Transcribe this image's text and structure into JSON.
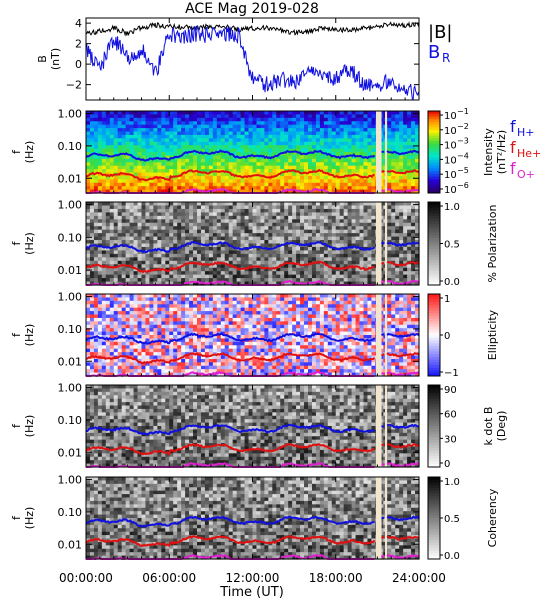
{
  "chart_data": {
    "type": "multi-panel spectrogram",
    "title": "ACE Mag 2019-028",
    "x_label": "Time (UT)",
    "x_ticks": [
      "00:00:00",
      "06:00:00",
      "12:00:00",
      "18:00:00",
      "24:00:00"
    ],
    "x_range_hours": [
      0,
      24
    ],
    "data_gap_hours": [
      [
        20.9,
        21.3
      ],
      [
        21.55,
        21.7
      ]
    ],
    "field_panel": {
      "y_label_line1": "B",
      "y_label_line2": "(nT)",
      "y_ticks": [
        "4",
        "2",
        "0",
        "−2"
      ],
      "y_range": [
        -3.5,
        4.5
      ],
      "series": [
        {
          "name": "|B|",
          "color": "#000000",
          "t": [
            0,
            1,
            2,
            3,
            4,
            5,
            6,
            7,
            8,
            9,
            10,
            11,
            12,
            13,
            14,
            15,
            16,
            17,
            18,
            19,
            20,
            21,
            22,
            23,
            24
          ],
          "values": [
            3.0,
            3.2,
            3.5,
            3.0,
            3.6,
            3.8,
            3.7,
            3.6,
            3.5,
            3.7,
            3.6,
            3.4,
            3.5,
            3.6,
            3.3,
            3.1,
            3.2,
            3.5,
            3.4,
            3.3,
            3.5,
            3.6,
            3.9,
            3.8,
            4.0
          ]
        },
        {
          "name": "B",
          "subscript": "R",
          "color": "#1010e0",
          "t": [
            0,
            1,
            2,
            3,
            4,
            5,
            6,
            7,
            8,
            9,
            10,
            11,
            12,
            13,
            14,
            15,
            16,
            17,
            18,
            19,
            20,
            21,
            22,
            23,
            24
          ],
          "values": [
            1.5,
            -0.5,
            2.5,
            0.5,
            1.5,
            -1.0,
            3.0,
            2.5,
            3.0,
            2.8,
            3.0,
            2.8,
            -1.5,
            -2.0,
            -1.5,
            -1.8,
            -0.5,
            -1.0,
            -1.5,
            -0.5,
            -2.0,
            -2.2,
            -1.5,
            -2.5,
            -2.8
          ]
        }
      ]
    },
    "spectrogram_panels": [
      {
        "name": "intensity",
        "y_label_line1": "f",
        "y_label_line2": "(Hz)",
        "y_ticks": [
          "1.00",
          "0.10",
          "0.01"
        ],
        "colorbar": "rainbow",
        "colorbar_label_line1": "Intensity",
        "colorbar_label_line2": "(nT²/Hz)",
        "colorbar_ticks": [
          "10",
          "10",
          "10",
          "10",
          "10",
          "10"
        ],
        "colorbar_tick_exponents": [
          "−1",
          "−2",
          "−3",
          "−4",
          "−5",
          "−6"
        ]
      },
      {
        "name": "polarization",
        "y_label_line1": "f",
        "y_label_line2": "(Hz)",
        "y_ticks": [
          "1.00",
          "0.10",
          "0.01"
        ],
        "colorbar": "gray",
        "colorbar_label_line1": "% Polarization",
        "colorbar_label_line2": "",
        "colorbar_ticks": [
          "1.0",
          "0.5",
          "0.0"
        ],
        "colorbar_tick_exponents": [
          "",
          "",
          ""
        ]
      },
      {
        "name": "ellipticity",
        "y_label_line1": "f",
        "y_label_line2": "(Hz)",
        "y_ticks": [
          "1.00",
          "0.10",
          "0.01"
        ],
        "colorbar": "bwr",
        "colorbar_label_line1": "Ellipticity",
        "colorbar_label_line2": "",
        "colorbar_ticks": [
          "1",
          "0",
          "−1"
        ],
        "colorbar_tick_exponents": [
          "",
          "",
          ""
        ]
      },
      {
        "name": "kdotb",
        "y_label_line1": "f",
        "y_label_line2": "(Hz)",
        "y_ticks": [
          "1.00",
          "0.10",
          "0.01"
        ],
        "colorbar": "gray",
        "colorbar_label_line1": "k dot B",
        "colorbar_label_line2": "(Deg)",
        "colorbar_ticks": [
          "90",
          "60",
          "30",
          "0"
        ],
        "colorbar_tick_exponents": [
          "",
          "",
          "",
          ""
        ]
      },
      {
        "name": "coherency",
        "y_label_line1": "f",
        "y_label_line2": "(Hz)",
        "y_ticks": [
          "1.00",
          "0.10",
          "0.01"
        ],
        "colorbar": "gray",
        "colorbar_label_line1": "Coherency",
        "colorbar_label_line2": "",
        "colorbar_ticks": [
          "1.0",
          "0.5",
          "0.0"
        ],
        "colorbar_tick_exponents": [
          "",
          "",
          ""
        ]
      }
    ],
    "freq_range_hz": [
      0.0035,
      1.2
    ],
    "gyrofrequency_lines": [
      {
        "name": "f",
        "subscript": "H+",
        "color": "#1010e0",
        "base_hz": 0.052
      },
      {
        "name": "f",
        "subscript": "He+",
        "color": "#e01010",
        "base_hz": 0.013
      },
      {
        "name": "f",
        "subscript": "O+",
        "color": "#e020d0",
        "base_hz": 0.0034
      }
    ]
  }
}
